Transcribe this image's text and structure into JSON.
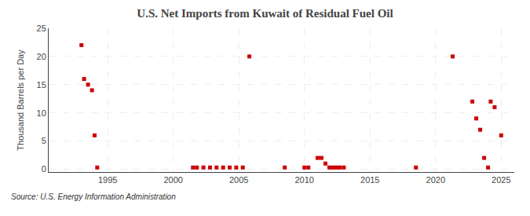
{
  "chart_data": {
    "type": "scatter",
    "title": "U.S. Net Imports from Kuwait of Residual Fuel Oil",
    "ylabel": "Thousand Barrels per Day",
    "annotations": [
      "Source: U.S. Energy Information Administration"
    ],
    "color": "#cc0000",
    "marker": "square",
    "grid": true,
    "xlim": [
      1990.5,
      2026
    ],
    "ylim": [
      -0.5,
      25
    ],
    "xticks": [
      1995,
      2000,
      2005,
      2010,
      2015,
      2020,
      2025
    ],
    "yticks": [
      0,
      5,
      10,
      15,
      20,
      25
    ],
    "x": [
      1993.0,
      1993.2,
      1993.5,
      1993.8,
      1994.0,
      1994.2,
      2001.5,
      2001.8,
      2002.3,
      2002.8,
      2003.3,
      2003.8,
      2004.3,
      2004.8,
      2005.3,
      2005.8,
      2008.5,
      2010.0,
      2010.3,
      2011.0,
      2011.3,
      2011.6,
      2011.9,
      2012.1,
      2012.3,
      2012.5,
      2012.7,
      2013.0,
      2018.5,
      2021.3,
      2022.8,
      2023.1,
      2023.4,
      2023.7,
      2024.0,
      2024.2,
      2024.5,
      2025.0
    ],
    "values": [
      22,
      16,
      15,
      14,
      6,
      0.3,
      0.3,
      0.3,
      0.3,
      0.3,
      0.3,
      0.3,
      0.3,
      0.3,
      0.3,
      20,
      0.3,
      0.3,
      0.3,
      2,
      2,
      1,
      0.3,
      0.3,
      0.3,
      0.3,
      0.3,
      0.3,
      0.3,
      20,
      12,
      9,
      7,
      2,
      0.3,
      12,
      11,
      6
    ]
  }
}
